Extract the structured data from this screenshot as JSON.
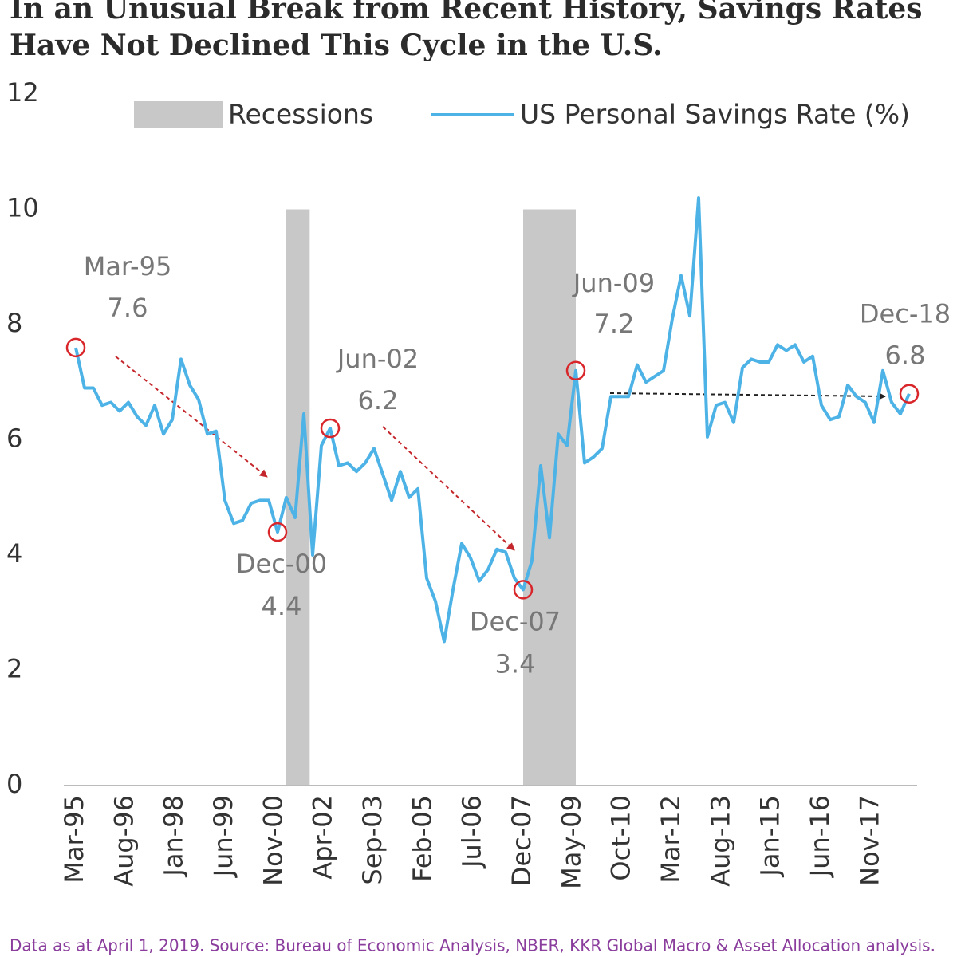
{
  "chart_data": {
    "type": "line",
    "title": [
      "In an Unusual Break from Recent History, Savings Rates",
      "Have Not Declined This Cycle in the U.S."
    ],
    "footnote": "Data as at April 1, 2019. Source: Bureau of Economic Analysis, NBER, KKR Global Macro & Asset Allocation analysis.",
    "ylim": [
      0,
      12
    ],
    "yticks": [
      0,
      2,
      4,
      6,
      8,
      10,
      12
    ],
    "xticks": [
      "Mar-95",
      "Aug-96",
      "Jan-98",
      "Jun-99",
      "Nov-00",
      "Apr-02",
      "Sep-03",
      "Feb-05",
      "Jul-06",
      "Dec-07",
      "May-09",
      "Oct-10",
      "Mar-12",
      "Aug-13",
      "Jan-15",
      "Jun-16",
      "Nov-17"
    ],
    "recessions_name": "Recessions",
    "recessions_color": "#c8c8c8",
    "recessions": [
      {
        "start": "Mar-01",
        "end": "Nov-01",
        "value": 10
      },
      {
        "start": "Dec-07",
        "end": "Jun-09",
        "value": 10
      }
    ],
    "x": [
      "Mar-95",
      "Jun-95",
      "Sep-95",
      "Dec-95",
      "Mar-96",
      "Jun-96",
      "Sep-96",
      "Dec-96",
      "Mar-97",
      "Jun-97",
      "Sep-97",
      "Dec-97",
      "Mar-98",
      "Jun-98",
      "Sep-98",
      "Dec-98",
      "Mar-99",
      "Jun-99",
      "Sep-99",
      "Dec-99",
      "Mar-00",
      "Jun-00",
      "Sep-00",
      "Dec-00",
      "Mar-01",
      "Jun-01",
      "Sep-01",
      "Dec-01",
      "Mar-02",
      "Jun-02",
      "Sep-02",
      "Dec-02",
      "Mar-03",
      "Jun-03",
      "Sep-03",
      "Dec-03",
      "Mar-04",
      "Jun-04",
      "Sep-04",
      "Dec-04",
      "Mar-05",
      "Jun-05",
      "Sep-05",
      "Dec-05",
      "Mar-06",
      "Jun-06",
      "Sep-06",
      "Dec-06",
      "Mar-07",
      "Jun-07",
      "Sep-07",
      "Dec-07",
      "Mar-08",
      "Jun-08",
      "Sep-08",
      "Dec-08",
      "Mar-09",
      "Jun-09",
      "Sep-09",
      "Dec-09",
      "Mar-10",
      "Jun-10",
      "Sep-10",
      "Dec-10",
      "Mar-11",
      "Jun-11",
      "Sep-11",
      "Dec-11",
      "Mar-12",
      "Jun-12",
      "Sep-12",
      "Dec-12",
      "Mar-13",
      "Jun-13",
      "Sep-13",
      "Dec-13",
      "Mar-14",
      "Jun-14",
      "Sep-14",
      "Dec-14",
      "Mar-15",
      "Jun-15",
      "Sep-15",
      "Dec-15",
      "Mar-16",
      "Jun-16",
      "Sep-16",
      "Dec-16",
      "Mar-17",
      "Jun-17",
      "Sep-17",
      "Dec-17",
      "Mar-18",
      "Jun-18",
      "Sep-18",
      "Dec-18"
    ],
    "series": [
      {
        "name": "US Personal Savings Rate (%)",
        "color": "#4db3e6",
        "values": [
          7.6,
          6.9,
          6.9,
          6.6,
          6.65,
          6.5,
          6.65,
          6.4,
          6.25,
          6.6,
          6.1,
          6.35,
          7.4,
          6.95,
          6.7,
          6.1,
          6.15,
          4.95,
          4.55,
          4.6,
          4.9,
          4.95,
          4.95,
          4.4,
          5.0,
          4.65,
          6.45,
          4.0,
          5.9,
          6.2,
          5.55,
          5.6,
          5.45,
          5.6,
          5.85,
          5.4,
          4.95,
          5.45,
          5.0,
          5.15,
          3.6,
          3.2,
          2.5,
          3.4,
          4.2,
          3.95,
          3.55,
          3.75,
          4.1,
          4.05,
          3.6,
          3.4,
          3.9,
          5.55,
          4.3,
          6.1,
          5.9,
          7.2,
          5.6,
          5.7,
          5.85,
          6.75,
          6.75,
          6.75,
          7.3,
          7.0,
          7.1,
          7.2,
          8.1,
          8.85,
          8.15,
          10.2,
          6.05,
          6.6,
          6.65,
          6.3,
          7.25,
          7.4,
          7.35,
          7.35,
          7.65,
          7.55,
          7.65,
          7.35,
          7.45,
          6.6,
          6.35,
          6.4,
          6.95,
          6.75,
          6.65,
          6.3,
          7.2,
          6.65,
          6.45,
          6.8
        ]
      }
    ],
    "annotations": [
      {
        "x": "Mar-95",
        "y": 7.6
      },
      {
        "x": "Dec-00",
        "y": 4.4
      },
      {
        "x": "Jun-02",
        "y": 6.2
      },
      {
        "x": "Dec-07",
        "y": 3.4
      },
      {
        "x": "Jun-09",
        "y": 7.2
      },
      {
        "x": "Dec-18",
        "y": 6.8
      }
    ],
    "annotation_color": "#d9262b"
  }
}
